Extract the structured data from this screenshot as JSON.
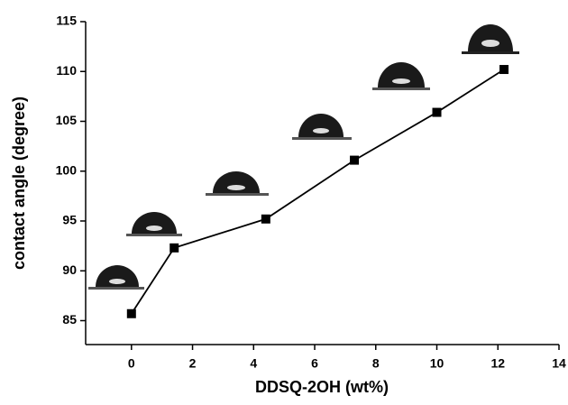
{
  "chart_data": {
    "type": "line",
    "x_label": "DDSQ-2OH (wt%)",
    "y_label": "contact angle (degree)",
    "x": [
      0,
      1.4,
      4.4,
      7.3,
      10,
      12.2
    ],
    "values": [
      85.7,
      92.3,
      95.2,
      101.1,
      105.9,
      110.2
    ],
    "color": "#000000",
    "xlim": [
      -1.5,
      14
    ],
    "xticks": [
      0,
      2,
      4,
      6,
      8,
      10,
      12,
      14
    ],
    "ylim": [
      82.6,
      115
    ],
    "yticks": [
      85,
      90,
      95,
      100,
      105,
      110,
      115
    ]
  }
}
